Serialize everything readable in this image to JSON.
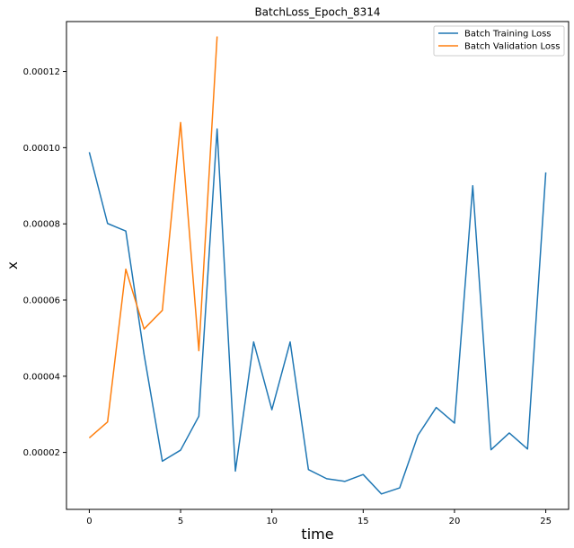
{
  "chart_data": {
    "type": "line",
    "title": "BatchLoss_Epoch_8314",
    "xlabel": "time",
    "ylabel": "x",
    "xlim": [
      -1.25,
      26.25
    ],
    "ylim": [
      5.05e-06,
      0.0001331
    ],
    "xticks": [
      0,
      5,
      10,
      15,
      20,
      25
    ],
    "xtick_labels": [
      "0",
      "5",
      "10",
      "15",
      "20",
      "25"
    ],
    "yticks": [
      2e-05,
      4e-05,
      6e-05,
      8e-05,
      0.0001,
      0.00012
    ],
    "ytick_labels": [
      "0.00002",
      "0.00004",
      "0.00006",
      "0.00008",
      "0.00010",
      "0.00012"
    ],
    "grid": false,
    "legend_position": "top-right",
    "series": [
      {
        "name": "Batch Training Loss",
        "color": "#1f77b4",
        "x": [
          0,
          1,
          2,
          3,
          4,
          5,
          6,
          7,
          8,
          9,
          10,
          11,
          12,
          13,
          14,
          15,
          16,
          17,
          18,
          19,
          20,
          21,
          22,
          23,
          24,
          25
        ],
        "values": [
          9.88e-05,
          8.01e-05,
          7.81e-05,
          4.57e-05,
          1.77e-05,
          2.06e-05,
          2.95e-05,
          0.0001049,
          1.51e-05,
          4.9e-05,
          3.12e-05,
          4.9e-05,
          1.55e-05,
          1.31e-05,
          1.24e-05,
          1.42e-05,
          9.1e-06,
          1.07e-05,
          2.45e-05,
          3.18e-05,
          2.77e-05,
          9e-05,
          2.07e-05,
          2.51e-05,
          2.09e-05,
          9.35e-05
        ]
      },
      {
        "name": "Batch Validation Loss",
        "color": "#ff7f0e",
        "x": [
          0,
          1,
          2,
          3,
          4,
          5,
          6,
          7
        ],
        "values": [
          2.38e-05,
          2.8e-05,
          6.81e-05,
          5.24e-05,
          5.73e-05,
          0.0001066,
          4.67e-05,
          0.0001292
        ]
      }
    ]
  }
}
